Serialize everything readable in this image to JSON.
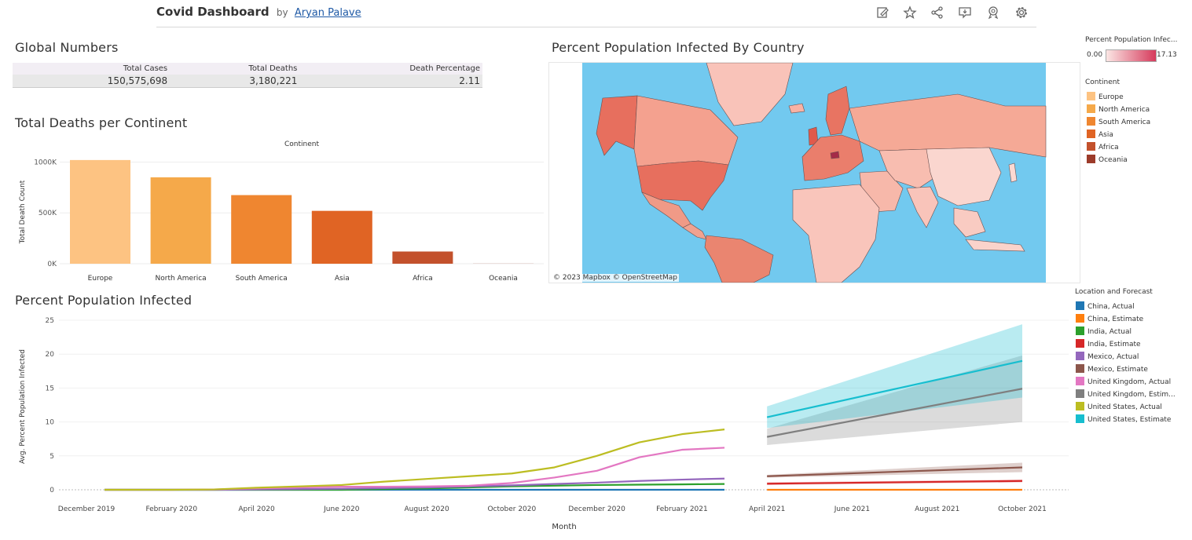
{
  "header": {
    "title": "Covid Dashboard",
    "by": "by",
    "author": "Aryan Palave",
    "icons": [
      "edit-icon",
      "star-icon",
      "share-icon",
      "comment-icon",
      "badge-icon",
      "gear-icon"
    ]
  },
  "global": {
    "title": "Global Numbers",
    "headers": [
      "Total Cases",
      "Total Deaths",
      "Death Percentage"
    ],
    "values": [
      "150,575,698",
      "3,180,221",
      "2.11"
    ]
  },
  "deaths": {
    "title": "Total Deaths per Continent",
    "header": "Continent",
    "ylabel": "Total Death Count"
  },
  "map": {
    "title": "Percent Population Infected By Country",
    "attribution": "© 2023 Mapbox © OpenStreetMap",
    "ocean_color": "#72c9ef"
  },
  "legends": {
    "ppi_title": "Percent Population Infec...",
    "ppi_min": "0.00",
    "ppi_max": "17.13",
    "continent_title": "Continent",
    "continents": [
      {
        "label": "Europe",
        "color": "#fdc382"
      },
      {
        "label": "North America",
        "color": "#f5a94a"
      },
      {
        "label": "South America",
        "color": "#ef8630"
      },
      {
        "label": "Asia",
        "color": "#e06424"
      },
      {
        "label": "Africa",
        "color": "#c3512c"
      },
      {
        "label": "Oceania",
        "color": "#9c3b2a"
      }
    ],
    "forecast_title": "Location and Forecast",
    "forecast": [
      {
        "label": "China, Actual",
        "color": "#1f77b4"
      },
      {
        "label": "China, Estimate",
        "color": "#ff7f0e"
      },
      {
        "label": "India, Actual",
        "color": "#2ca02c"
      },
      {
        "label": "India, Estimate",
        "color": "#d62728"
      },
      {
        "label": "Mexico, Actual",
        "color": "#9467bd"
      },
      {
        "label": "Mexico, Estimate",
        "color": "#8c564b"
      },
      {
        "label": "United Kingdom, Actual",
        "color": "#e377c2"
      },
      {
        "label": "United Kingdom, Estim...",
        "color": "#7f7f7f"
      },
      {
        "label": "United States, Actual",
        "color": "#bcbd22"
      },
      {
        "label": "United States, Estimate",
        "color": "#17becf"
      }
    ]
  },
  "ppi": {
    "title": "Percent Population Infected"
  },
  "chart_data": [
    {
      "type": "bar",
      "title": "Total Deaths per Continent",
      "xlabel": "",
      "ylabel": "Total Death Count",
      "categories": [
        "Europe",
        "North America",
        "South America",
        "Asia",
        "Africa",
        "Oceania"
      ],
      "values": [
        1020000,
        850000,
        675000,
        520000,
        120000,
        1000
      ],
      "colors": [
        "#fdc382",
        "#f5a94a",
        "#ef8630",
        "#e06424",
        "#c3512c",
        "#9c3b2a"
      ],
      "ylim": [
        0,
        1050000
      ],
      "yticks": [
        {
          "v": 0,
          "label": "0K"
        },
        {
          "v": 500000,
          "label": "500K"
        },
        {
          "v": 1000000,
          "label": "1000K"
        }
      ],
      "grid": true
    },
    {
      "type": "line",
      "title": "Percent Population Infected",
      "xlabel": "Month",
      "ylabel": "Avg. Percent Population Infected",
      "x_unit": "month",
      "xlim": [
        "2019-12",
        "2021-10"
      ],
      "ylim": [
        0,
        25
      ],
      "yticks": [
        0,
        5,
        10,
        15,
        20,
        25
      ],
      "xticks": [
        {
          "m": "2019-12",
          "label": "December 2019"
        },
        {
          "m": "2020-02",
          "label": "February 2020"
        },
        {
          "m": "2020-04",
          "label": "April 2020"
        },
        {
          "m": "2020-06",
          "label": "June 2020"
        },
        {
          "m": "2020-08",
          "label": "August 2020"
        },
        {
          "m": "2020-10",
          "label": "October 2020"
        },
        {
          "m": "2020-12",
          "label": "December 2020"
        },
        {
          "m": "2021-02",
          "label": "February 2021"
        },
        {
          "m": "2021-04",
          "label": "April 2021"
        },
        {
          "m": "2021-06",
          "label": "June 2021"
        },
        {
          "m": "2021-08",
          "label": "August 2021"
        },
        {
          "m": "2021-10",
          "label": "October 2021"
        }
      ],
      "actual_months": [
        "2020-01",
        "2020-02",
        "2020-03",
        "2020-04",
        "2020-05",
        "2020-06",
        "2020-07",
        "2020-08",
        "2020-09",
        "2020-10",
        "2020-11",
        "2020-12",
        "2021-01",
        "2021-02",
        "2021-03"
      ],
      "estimate_months": [
        "2021-04",
        "2021-10"
      ],
      "series": [
        {
          "name": "China, Actual",
          "color": "#1f77b4",
          "values": [
            0,
            0,
            0,
            0,
            0,
            0,
            0,
            0,
            0,
            0,
            0,
            0,
            0,
            0,
            0
          ]
        },
        {
          "name": "India, Actual",
          "color": "#2ca02c",
          "values": [
            0,
            0,
            0,
            0,
            0,
            0,
            0.1,
            0.2,
            0.35,
            0.5,
            0.6,
            0.7,
            0.75,
            0.8,
            0.85
          ]
        },
        {
          "name": "Mexico, Actual",
          "color": "#9467bd",
          "values": [
            0,
            0,
            0,
            0.05,
            0.1,
            0.15,
            0.25,
            0.35,
            0.5,
            0.65,
            0.85,
            1.05,
            1.3,
            1.5,
            1.65
          ]
        },
        {
          "name": "United Kingdom, Actual",
          "color": "#e377c2",
          "values": [
            0,
            0,
            0.05,
            0.2,
            0.35,
            0.45,
            0.45,
            0.5,
            0.6,
            1.0,
            1.8,
            2.8,
            4.8,
            5.9,
            6.2
          ]
        },
        {
          "name": "United States, Actual",
          "color": "#bcbd22",
          "values": [
            0,
            0,
            0.05,
            0.3,
            0.5,
            0.7,
            1.2,
            1.6,
            2.0,
            2.4,
            3.3,
            5.0,
            7.0,
            8.2,
            8.9
          ]
        },
        {
          "name": "China, Estimate",
          "color": "#ff7f0e",
          "values": [
            0,
            0
          ],
          "band": [
            [
              0,
              0
            ],
            [
              0,
              0
            ]
          ]
        },
        {
          "name": "India, Estimate",
          "color": "#d62728",
          "values": [
            0.9,
            1.3
          ],
          "band": [
            [
              0.7,
              1.1
            ],
            [
              1.1,
              1.5
            ]
          ]
        },
        {
          "name": "Mexico, Estimate",
          "color": "#8c564b",
          "values": [
            2.0,
            3.3
          ],
          "band": [
            [
              1.8,
              2.2
            ],
            [
              2.6,
              4.0
            ]
          ]
        },
        {
          "name": "United Kingdom, Estimate",
          "color": "#7f7f7f",
          "values": [
            7.8,
            14.9
          ],
          "band": [
            [
              6.6,
              9.0
            ],
            [
              10.0,
              19.8
            ]
          ]
        },
        {
          "name": "United States, Estimate",
          "color": "#17becf",
          "values": [
            10.7,
            19.0
          ],
          "band": [
            [
              9.1,
              12.3
            ],
            [
              13.6,
              24.4
            ]
          ]
        }
      ]
    }
  ]
}
